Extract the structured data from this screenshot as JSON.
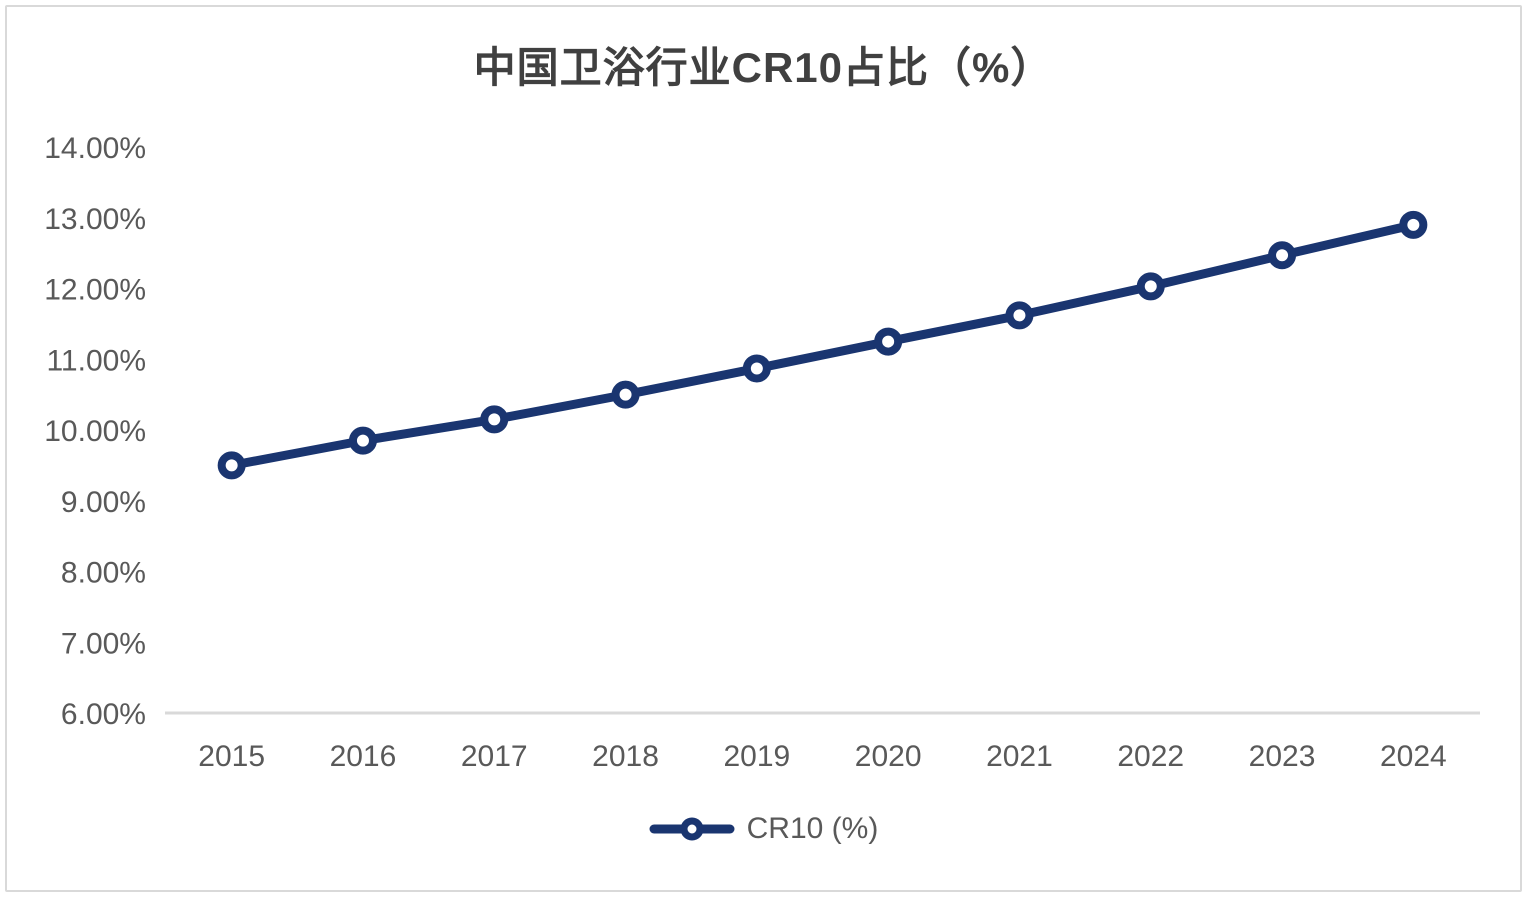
{
  "window": {
    "background": "#FFFFFF",
    "border_color": "#D9D9D9"
  },
  "colors": {
    "title_text": "#404040",
    "axis_text": "#595959",
    "axis_line": "#D9D9D9",
    "series_line": "#1A3570",
    "marker_fill": "#FFFFFF"
  },
  "chart_data": {
    "type": "line",
    "title": "中国卫浴行业CR10占比（%）",
    "categories": [
      "2015",
      "2016",
      "2017",
      "2018",
      "2019",
      "2020",
      "2021",
      "2022",
      "2023",
      "2024"
    ],
    "series": [
      {
        "name": "CR10 (%)",
        "color": "#1A3570",
        "marker": "open-circle",
        "values": [
          9.5,
          9.85,
          10.15,
          10.5,
          10.87,
          11.25,
          11.62,
          12.03,
          12.47,
          12.9
        ]
      }
    ],
    "xlabel": "",
    "ylabel": "",
    "ylim": [
      6,
      14
    ],
    "ytick_step": 1,
    "ytick_labels": [
      "6.00%",
      "7.00%",
      "8.00%",
      "9.00%",
      "10.00%",
      "11.00%",
      "12.00%",
      "13.00%",
      "14.00%"
    ],
    "grid": false,
    "legend_position": "bottom",
    "legend_labels": [
      "CR10 (%)"
    ]
  }
}
